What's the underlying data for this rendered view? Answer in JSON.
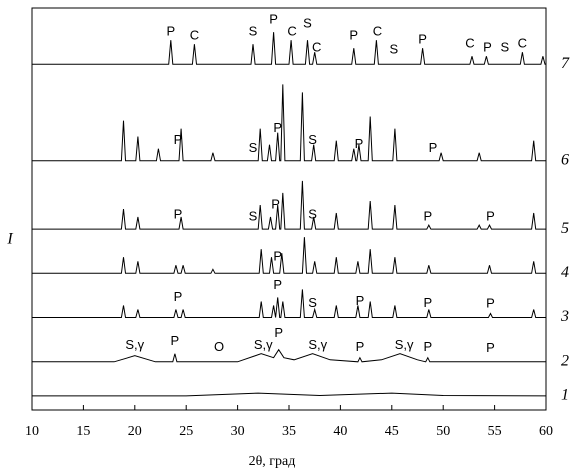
{
  "chart_data": {
    "type": "line",
    "xlabel": "2θ, град",
    "ylabel": "I",
    "xlim": [
      10,
      60
    ],
    "xticks": [
      10,
      15,
      20,
      25,
      30,
      35,
      40,
      45,
      50,
      55,
      60
    ],
    "ylim": [
      0,
      100
    ],
    "series": [
      {
        "name": "7",
        "color": "#000000",
        "x": [
          10,
          23.3,
          23.5,
          23.7,
          25.6,
          25.8,
          26.0,
          31.3,
          31.5,
          31.7,
          33.3,
          33.5,
          33.7,
          35.0,
          35.2,
          35.4,
          36.6,
          36.8,
          37.0,
          37.3,
          37.5,
          37.7,
          41.1,
          41.3,
          41.5,
          43.3,
          43.5,
          43.7,
          47.8,
          48.0,
          48.2,
          52.6,
          52.8,
          53.0,
          54.0,
          54.2,
          54.4,
          57.5,
          57.7,
          57.9,
          59.5,
          59.7,
          59.9,
          60
        ],
        "values": [
          86,
          86,
          92,
          86,
          86,
          91,
          86,
          86,
          91,
          86,
          86,
          94,
          86,
          86,
          92,
          86,
          86,
          92,
          86,
          86,
          89,
          86,
          86,
          90,
          86,
          86,
          92,
          86,
          86,
          90,
          86,
          86,
          88,
          86,
          86,
          88,
          86,
          86,
          89,
          86,
          86,
          88,
          86,
          86
        ]
      },
      {
        "name": "6",
        "color": "#000000",
        "x": [
          10,
          18.7,
          18.9,
          19.1,
          20.1,
          20.3,
          20.5,
          22.1,
          22.3,
          22.5,
          24.3,
          24.5,
          24.7,
          27.4,
          27.6,
          27.8,
          32.0,
          32.2,
          32.4,
          32.9,
          33.1,
          33.3,
          33.7,
          33.9,
          34.1,
          34.2,
          34.4,
          34.6,
          36.1,
          36.3,
          36.5,
          37.2,
          37.4,
          37.6,
          39.4,
          39.6,
          39.8,
          41.1,
          41.3,
          41.5,
          41.6,
          41.8,
          42.0,
          42.7,
          42.9,
          43.1,
          45.1,
          45.3,
          45.5,
          49.6,
          49.8,
          50.0,
          53.3,
          53.5,
          53.7,
          58.6,
          58.8,
          59.0,
          60
        ],
        "values": [
          62,
          62,
          72,
          62,
          62,
          68,
          62,
          62,
          65,
          62,
          62,
          70,
          62,
          62,
          64,
          62,
          62,
          70,
          62,
          62,
          66,
          62,
          62,
          69,
          62,
          62,
          81,
          62,
          62,
          79,
          62,
          62,
          66,
          62,
          62,
          67,
          62,
          62,
          65,
          62,
          62,
          66,
          62,
          62,
          73,
          62,
          62,
          70,
          62,
          62,
          64,
          62,
          62,
          64,
          62,
          62,
          67,
          62,
          62
        ]
      },
      {
        "name": "5",
        "color": "#000000",
        "x": [
          10,
          18.7,
          18.9,
          19.1,
          20.1,
          20.3,
          20.5,
          24.3,
          24.5,
          24.7,
          32.0,
          32.2,
          32.4,
          33.0,
          33.2,
          33.4,
          33.7,
          33.9,
          34.1,
          34.2,
          34.4,
          34.6,
          36.1,
          36.3,
          36.5,
          37.2,
          37.4,
          37.6,
          39.4,
          39.6,
          39.8,
          42.7,
          42.9,
          43.1,
          45.1,
          45.3,
          45.5,
          48.4,
          48.6,
          48.8,
          53.3,
          53.5,
          53.7,
          54.3,
          54.5,
          54.7,
          58.6,
          58.8,
          59.0,
          60
        ],
        "values": [
          45,
          45,
          50,
          45,
          45,
          48,
          45,
          45,
          48,
          45,
          45,
          51,
          45,
          45,
          48,
          45,
          45,
          51,
          45,
          45,
          54,
          45,
          45,
          57,
          45,
          45,
          48,
          45,
          45,
          49,
          45,
          45,
          52,
          45,
          45,
          51,
          45,
          45,
          46,
          45,
          45,
          46,
          45,
          45,
          46,
          45,
          45,
          49,
          45,
          45
        ]
      },
      {
        "name": "4",
        "color": "#000000",
        "x": [
          10,
          18.7,
          18.9,
          19.1,
          20.1,
          20.3,
          20.5,
          23.8,
          24.0,
          24.2,
          24.5,
          24.7,
          24.9,
          27.4,
          27.6,
          27.8,
          32.1,
          32.3,
          32.5,
          33.1,
          33.3,
          33.5,
          34.1,
          34.3,
          34.5,
          36.3,
          36.5,
          36.7,
          37.3,
          37.5,
          37.7,
          39.4,
          39.6,
          39.8,
          41.5,
          41.7,
          41.9,
          42.7,
          42.9,
          43.1,
          45.1,
          45.3,
          45.5,
          48.4,
          48.6,
          48.8,
          54.3,
          54.5,
          54.7,
          58.6,
          58.8,
          59.0,
          60
        ],
        "values": [
          34,
          34,
          38,
          34,
          34,
          37,
          34,
          34,
          36,
          34,
          34,
          36,
          34,
          34,
          35,
          34,
          34,
          40,
          34,
          34,
          38,
          34,
          34,
          39,
          34,
          34,
          43,
          34,
          34,
          37,
          34,
          34,
          38,
          34,
          34,
          37,
          34,
          34,
          40,
          34,
          34,
          38,
          34,
          34,
          36,
          34,
          34,
          36,
          34,
          34,
          37,
          34,
          34
        ]
      },
      {
        "name": "3",
        "color": "#000000",
        "x": [
          10,
          18.7,
          18.9,
          19.1,
          20.1,
          20.3,
          20.5,
          23.8,
          24.0,
          24.2,
          24.5,
          24.7,
          24.9,
          32.1,
          32.3,
          32.5,
          33.3,
          33.5,
          33.7,
          33.7,
          33.9,
          34.1,
          34.2,
          34.4,
          34.6,
          36.1,
          36.3,
          36.5,
          37.3,
          37.5,
          37.7,
          39.4,
          39.6,
          39.8,
          41.5,
          41.7,
          41.9,
          42.7,
          42.9,
          43.1,
          45.1,
          45.3,
          45.5,
          48.4,
          48.6,
          48.8,
          54.4,
          54.6,
          54.8,
          58.6,
          58.8,
          59.0,
          60
        ],
        "values": [
          23,
          23,
          26,
          23,
          23,
          25,
          23,
          23,
          25,
          23,
          23,
          25,
          23,
          23,
          27,
          23,
          23,
          26,
          23,
          23,
          28,
          23,
          23,
          27,
          23,
          23,
          30,
          23,
          23,
          25,
          23,
          23,
          26,
          23,
          23,
          26,
          23,
          23,
          27,
          23,
          23,
          26,
          23,
          23,
          25,
          23,
          23,
          24,
          23,
          23,
          25,
          23,
          23
        ]
      },
      {
        "name": "2",
        "color": "#000000",
        "x": [
          10,
          18,
          20,
          22,
          23.7,
          23.9,
          24.1,
          30,
          32.3,
          33.5,
          34,
          34.5,
          35.5,
          37.3,
          39,
          41.7,
          41.9,
          42.1,
          44,
          45.8,
          47.5,
          48.3,
          48.5,
          48.7,
          60
        ],
        "values": [
          12,
          12,
          13.5,
          12,
          12,
          14,
          12,
          12,
          14,
          13,
          15,
          13,
          12.5,
          14,
          12.5,
          12,
          13,
          12,
          12.5,
          14,
          12.5,
          12,
          13,
          12,
          12
        ]
      },
      {
        "name": "1",
        "color": "#000000",
        "x": [
          10,
          25,
          32,
          38,
          45,
          50,
          60
        ],
        "values": [
          3.5,
          3.5,
          4.2,
          3.6,
          4.2,
          3.6,
          3.5
        ]
      }
    ],
    "annotations": [
      {
        "text": "P",
        "x": 23.5,
        "y": 94
      },
      {
        "text": "C",
        "x": 25.8,
        "y": 93
      },
      {
        "text": "S",
        "x": 31.5,
        "y": 94
      },
      {
        "text": "P",
        "x": 33.5,
        "y": 97
      },
      {
        "text": "C",
        "x": 35.3,
        "y": 94
      },
      {
        "text": "S",
        "x": 36.8,
        "y": 96
      },
      {
        "text": "C",
        "x": 37.7,
        "y": 90
      },
      {
        "text": "P",
        "x": 41.3,
        "y": 93
      },
      {
        "text": "C",
        "x": 43.6,
        "y": 94
      },
      {
        "text": "S",
        "x": 45.2,
        "y": 89.5
      },
      {
        "text": "P",
        "x": 48,
        "y": 92
      },
      {
        "text": "C",
        "x": 52.6,
        "y": 91
      },
      {
        "text": "P",
        "x": 54.3,
        "y": 90
      },
      {
        "text": "S",
        "x": 56,
        "y": 90
      },
      {
        "text": "C",
        "x": 57.7,
        "y": 91
      },
      {
        "text": "P",
        "x": 24.2,
        "y": 67
      },
      {
        "text": "S",
        "x": 31.5,
        "y": 65
      },
      {
        "text": "P",
        "x": 33.9,
        "y": 70
      },
      {
        "text": "S",
        "x": 37.3,
        "y": 67
      },
      {
        "text": "P",
        "x": 41.8,
        "y": 66
      },
      {
        "text": "P",
        "x": 49,
        "y": 65
      },
      {
        "text": "P",
        "x": 24.2,
        "y": 48.5
      },
      {
        "text": "S",
        "x": 31.5,
        "y": 48
      },
      {
        "text": "P",
        "x": 33.7,
        "y": 51
      },
      {
        "text": "S",
        "x": 37.3,
        "y": 48.5
      },
      {
        "text": "P",
        "x": 48.5,
        "y": 48
      },
      {
        "text": "P",
        "x": 54.6,
        "y": 48
      },
      {
        "text": "P",
        "x": 33.9,
        "y": 38
      },
      {
        "text": "P",
        "x": 24.2,
        "y": 28
      },
      {
        "text": "P",
        "x": 33.9,
        "y": 31
      },
      {
        "text": "S",
        "x": 37.3,
        "y": 26.5
      },
      {
        "text": "P",
        "x": 41.9,
        "y": 27
      },
      {
        "text": "P",
        "x": 48.5,
        "y": 26.5
      },
      {
        "text": "P",
        "x": 54.6,
        "y": 26.3
      },
      {
        "text": "S,γ",
        "x": 20,
        "y": 16
      },
      {
        "text": "P",
        "x": 23.9,
        "y": 17
      },
      {
        "text": "O",
        "x": 28.2,
        "y": 15.5
      },
      {
        "text": "S,γ",
        "x": 32.5,
        "y": 16
      },
      {
        "text": "P",
        "x": 34,
        "y": 19
      },
      {
        "text": "S,γ",
        "x": 37.8,
        "y": 16
      },
      {
        "text": "P",
        "x": 41.9,
        "y": 15.5
      },
      {
        "text": "S,γ",
        "x": 46.2,
        "y": 16
      },
      {
        "text": "P",
        "x": 48.5,
        "y": 15.5
      },
      {
        "text": "P",
        "x": 54.6,
        "y": 15.3
      }
    ]
  }
}
